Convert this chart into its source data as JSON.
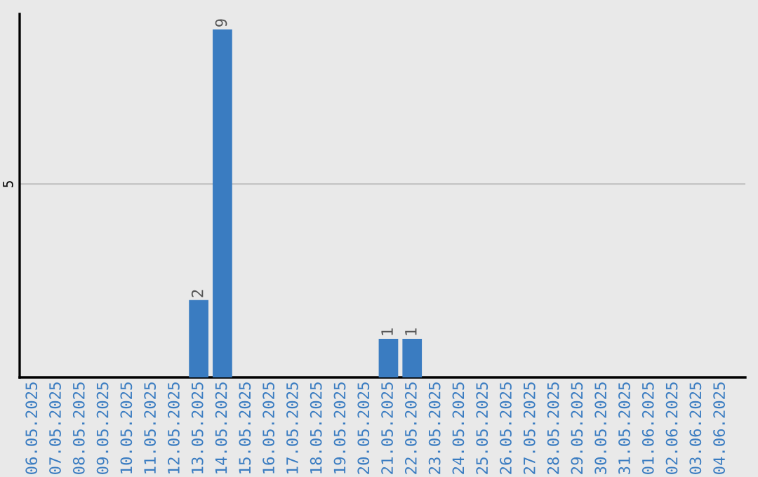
{
  "chart_data": {
    "type": "bar",
    "categories": [
      "06.05.2025",
      "07.05.2025",
      "08.05.2025",
      "09.05.2025",
      "10.05.2025",
      "11.05.2025",
      "12.05.2025",
      "13.05.2025",
      "14.05.2025",
      "15.05.2025",
      "16.05.2025",
      "17.05.2025",
      "18.05.2025",
      "19.05.2025",
      "20.05.2025",
      "21.05.2025",
      "22.05.2025",
      "23.05.2025",
      "24.05.2025",
      "25.05.2025",
      "26.05.2025",
      "27.05.2025",
      "28.05.2025",
      "29.05.2025",
      "30.05.2025",
      "31.05.2025",
      "01.06.2025",
      "02.06.2025",
      "03.06.2025",
      "04.06.2025"
    ],
    "values": [
      0,
      0,
      0,
      0,
      0,
      0,
      0,
      2,
      9,
      0,
      0,
      0,
      0,
      0,
      0,
      1,
      1,
      0,
      0,
      0,
      0,
      0,
      0,
      0,
      0,
      0,
      0,
      0,
      0,
      0
    ],
    "value_labels": [
      null,
      null,
      null,
      null,
      null,
      null,
      null,
      "2",
      "9",
      null,
      null,
      null,
      null,
      null,
      null,
      "1",
      "1",
      null,
      null,
      null,
      null,
      null,
      null,
      null,
      null,
      null,
      null,
      null,
      null,
      null
    ],
    "color": "#3a7cc1",
    "ylim": [
      0,
      9.4
    ],
    "yticks": [
      5
    ],
    "grid": "y"
  }
}
